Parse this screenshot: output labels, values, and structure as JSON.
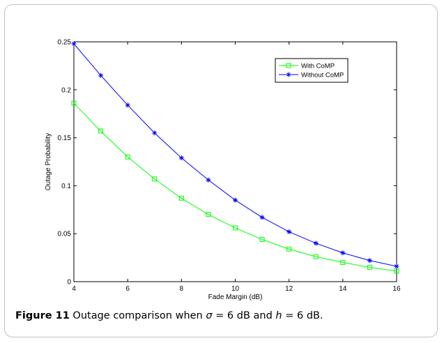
{
  "caption": {
    "label": "Figure 11",
    "text_parts": [
      "Outage comparison when ",
      "σ",
      " = 6 dB and ",
      "h",
      " = 6 dB."
    ]
  },
  "chart_data": {
    "type": "line",
    "title": "",
    "xlabel": "Fade Margin (dB)",
    "ylabel": "Outage Probability",
    "xlim": [
      4,
      16
    ],
    "ylim": [
      0,
      0.25
    ],
    "xticks": [
      4,
      6,
      8,
      10,
      12,
      14,
      16
    ],
    "yticks": [
      0,
      0.05,
      0.1,
      0.15,
      0.2,
      0.25
    ],
    "ytick_labels": [
      "0",
      "0.05",
      "0.1",
      "0.15",
      "0.2",
      "0.25"
    ],
    "grid": false,
    "legend_position": "top-right",
    "x": [
      4,
      5,
      6,
      7,
      8,
      9,
      10,
      11,
      12,
      13,
      14,
      15,
      16
    ],
    "series": [
      {
        "name": "With CoMP",
        "color": "#00ff00",
        "marker": "square",
        "values": [
          0.186,
          0.157,
          0.13,
          0.107,
          0.087,
          0.07,
          0.056,
          0.044,
          0.034,
          0.026,
          0.02,
          0.015,
          0.011
        ]
      },
      {
        "name": "Without CoMP",
        "color": "#0000ff",
        "marker": "asterisk",
        "values": [
          0.248,
          0.215,
          0.184,
          0.155,
          0.129,
          0.106,
          0.085,
          0.067,
          0.052,
          0.04,
          0.03,
          0.022,
          0.016
        ]
      }
    ]
  }
}
